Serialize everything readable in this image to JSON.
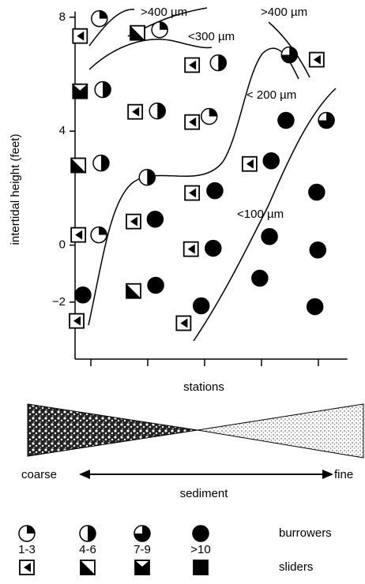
{
  "chart_data": {
    "type": "scatter",
    "ylabel": "intertidal height (feet)",
    "xlabel": "stations",
    "xlim": [
      0.72,
      5.51
    ],
    "xticks": [
      1,
      2,
      3,
      4,
      5
    ],
    "ylim": [
      -4,
      8.2
    ],
    "yticks": [
      8,
      4,
      0,
      {
        "value": -2,
        "label": "−2"
      }
    ],
    "burrowers": [
      {
        "x": [
          1.15,
          1.14,
          2.21,
          3.08
        ],
        "values": [
          7.95,
          0.36,
          7.56,
          4.52
        ]
      },
      {
        "x": [
          1.21,
          1.18,
          2.17,
          1.99,
          3.24
        ],
        "values": [
          5.46,
          2.88,
          4.71,
          2.38,
          6.4
        ]
      },
      {
        "x": [
          4.49,
          5.14
        ],
        "values": [
          6.68,
          4.38
        ]
      },
      {
        "x": [
          0.86,
          2.13,
          2.14,
          3.18,
          3.15,
          2.94,
          4.43,
          4.17,
          4.14,
          3.97,
          4.97,
          4.99,
          4.94
        ],
        "values": [
          -1.75,
          0.91,
          -1.41,
          1.91,
          -0.11,
          -2.13,
          4.38,
          2.96,
          0.3,
          -1.16,
          1.86,
          -0.17,
          -2.16
        ]
      }
    ],
    "sliders": [
      {
        "x": [
          0.81,
          0.78,
          0.75,
          1.78,
          1.75,
          2.78,
          2.78,
          2.78,
          2.76,
          2.63,
          3.79,
          4.97
        ],
        "values": [
          7.34,
          0.36,
          -2.66,
          4.68,
          0.83,
          6.32,
          4.32,
          1.83,
          -0.14,
          -2.74,
          2.85,
          6.51
        ]
      },
      {
        "x": [
          0.78,
          1.82,
          1.75
        ],
        "values": [
          2.8,
          7.45,
          -1.61
        ]
      },
      {
        "x": [
          0.81
        ],
        "values": [
          5.4
        ]
      },
      {
        "x": [],
        "values": []
      }
    ],
    "annotations": [
      ">400 µm",
      ">400 µm",
      "<300 µm",
      "< 200 µm",
      "<100 µm"
    ],
    "sediment": {
      "label": "sediment",
      "left": "coarse",
      "right": "fine"
    },
    "legend": {
      "groups": [
        "burrowers",
        "sliders"
      ],
      "classes": [
        "1-3",
        "4-6",
        "7-9",
        ">10"
      ]
    }
  }
}
